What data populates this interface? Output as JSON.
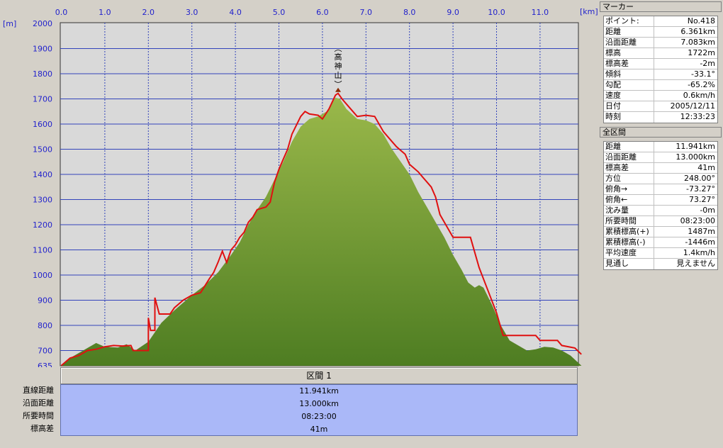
{
  "chart_data": {
    "type": "area",
    "x_unit": "[km]",
    "y_unit": "[m]",
    "x_ticks": [
      "0.0",
      "1.0",
      "2.0",
      "3.0",
      "4.0",
      "5.0",
      "6.0",
      "7.0",
      "8.0",
      "9.0",
      "10.0",
      "11.0"
    ],
    "y_ticks": [
      "2000",
      "1900",
      "1800",
      "1700",
      "1600",
      "1500",
      "1400",
      "1300",
      "1200",
      "1100",
      "1000",
      "900",
      "800",
      "700",
      "635"
    ],
    "xlim": [
      0,
      12
    ],
    "ylim": [
      635,
      2000
    ],
    "grid": true,
    "annotation": {
      "label": "高神山",
      "x": 6.36,
      "y": 1722
    },
    "series": [
      {
        "style": "green filled area",
        "color": "#6f9a3a",
        "points": [
          [
            0,
            640
          ],
          [
            0.2,
            670
          ],
          [
            0.5,
            700
          ],
          [
            0.8,
            730
          ],
          [
            1.0,
            715
          ],
          [
            1.3,
            712
          ],
          [
            1.5,
            725
          ],
          [
            1.7,
            700
          ],
          [
            2.0,
            735
          ],
          [
            2.3,
            810
          ],
          [
            2.6,
            860
          ],
          [
            3.0,
            920
          ],
          [
            3.3,
            960
          ],
          [
            3.6,
            1010
          ],
          [
            3.9,
            1080
          ],
          [
            4.1,
            1130
          ],
          [
            4.3,
            1200
          ],
          [
            4.5,
            1260
          ],
          [
            4.7,
            1310
          ],
          [
            4.9,
            1380
          ],
          [
            5.1,
            1450
          ],
          [
            5.3,
            1530
          ],
          [
            5.5,
            1590
          ],
          [
            5.7,
            1620
          ],
          [
            5.9,
            1630
          ],
          [
            6.1,
            1650
          ],
          [
            6.3,
            1705
          ],
          [
            6.4,
            1700
          ],
          [
            6.55,
            1660
          ],
          [
            6.8,
            1620
          ],
          [
            7.0,
            1615
          ],
          [
            7.2,
            1600
          ],
          [
            7.4,
            1560
          ],
          [
            7.6,
            1500
          ],
          [
            7.8,
            1450
          ],
          [
            8.0,
            1400
          ],
          [
            8.2,
            1330
          ],
          [
            8.4,
            1270
          ],
          [
            8.6,
            1210
          ],
          [
            8.8,
            1150
          ],
          [
            9.0,
            1080
          ],
          [
            9.2,
            1020
          ],
          [
            9.35,
            970
          ],
          [
            9.5,
            950
          ],
          [
            9.6,
            960
          ],
          [
            9.7,
            950
          ],
          [
            9.9,
            880
          ],
          [
            10.1,
            800
          ],
          [
            10.3,
            740
          ],
          [
            10.5,
            720
          ],
          [
            10.7,
            700
          ],
          [
            10.9,
            705
          ],
          [
            11.1,
            715
          ],
          [
            11.3,
            712
          ],
          [
            11.5,
            700
          ],
          [
            11.7,
            680
          ],
          [
            11.95,
            640
          ]
        ]
      },
      {
        "style": "red line",
        "color": "#e01010",
        "points": [
          [
            0,
            640
          ],
          [
            0.2,
            670
          ],
          [
            0.4,
            680
          ],
          [
            0.6,
            700
          ],
          [
            0.8,
            705
          ],
          [
            1.0,
            715
          ],
          [
            1.2,
            720
          ],
          [
            1.4,
            718
          ],
          [
            1.6,
            720
          ],
          [
            1.65,
            700
          ],
          [
            2.0,
            700
          ],
          [
            2.0,
            830
          ],
          [
            2.05,
            780
          ],
          [
            2.15,
            780
          ],
          [
            2.15,
            910
          ],
          [
            2.25,
            845
          ],
          [
            2.5,
            845
          ],
          [
            2.6,
            870
          ],
          [
            2.8,
            900
          ],
          [
            3.0,
            920
          ],
          [
            3.2,
            930
          ],
          [
            3.4,
            985
          ],
          [
            3.5,
            1010
          ],
          [
            3.6,
            1050
          ],
          [
            3.7,
            1095
          ],
          [
            3.8,
            1050
          ],
          [
            3.9,
            1100
          ],
          [
            4.0,
            1120
          ],
          [
            4.1,
            1150
          ],
          [
            4.2,
            1170
          ],
          [
            4.3,
            1210
          ],
          [
            4.4,
            1230
          ],
          [
            4.5,
            1260
          ],
          [
            4.7,
            1270
          ],
          [
            4.8,
            1290
          ],
          [
            4.9,
            1370
          ],
          [
            5.0,
            1420
          ],
          [
            5.1,
            1460
          ],
          [
            5.2,
            1500
          ],
          [
            5.3,
            1560
          ],
          [
            5.5,
            1630
          ],
          [
            5.6,
            1650
          ],
          [
            5.7,
            1640
          ],
          [
            5.9,
            1635
          ],
          [
            6.0,
            1620
          ],
          [
            6.15,
            1660
          ],
          [
            6.3,
            1715
          ],
          [
            6.36,
            1722
          ],
          [
            6.45,
            1700
          ],
          [
            6.6,
            1670
          ],
          [
            6.8,
            1630
          ],
          [
            7.0,
            1635
          ],
          [
            7.2,
            1630
          ],
          [
            7.4,
            1570
          ],
          [
            7.6,
            1530
          ],
          [
            7.7,
            1510
          ],
          [
            7.9,
            1480
          ],
          [
            8.0,
            1440
          ],
          [
            8.2,
            1410
          ],
          [
            8.3,
            1390
          ],
          [
            8.5,
            1350
          ],
          [
            8.6,
            1310
          ],
          [
            8.7,
            1240
          ],
          [
            8.8,
            1210
          ],
          [
            9.0,
            1150
          ],
          [
            9.4,
            1150
          ],
          [
            9.6,
            1030
          ],
          [
            9.8,
            940
          ],
          [
            10.0,
            850
          ],
          [
            10.15,
            760
          ],
          [
            10.9,
            760
          ],
          [
            11.0,
            740
          ],
          [
            11.4,
            740
          ],
          [
            11.5,
            720
          ],
          [
            11.8,
            710
          ],
          [
            11.95,
            685
          ]
        ]
      }
    ]
  },
  "summary": {
    "section_label": "区間 1",
    "labels": [
      "直線距離",
      "沿面距離",
      "所要時間",
      "標高差"
    ],
    "values": [
      "11.941km",
      "13.000km",
      "08:23:00",
      "41m"
    ]
  },
  "marker_panel": {
    "title": "マーカー",
    "rows": [
      {
        "k": "ポイント:",
        "v": "No.418"
      },
      {
        "k": "距離",
        "v": "6.361km"
      },
      {
        "k": "沿面距離",
        "v": "7.083km"
      },
      {
        "k": "標高",
        "v": "1722m"
      },
      {
        "k": "標高差",
        "v": "-2m"
      },
      {
        "k": "傾斜",
        "v": "-33.1°"
      },
      {
        "k": "勾配",
        "v": "-65.2%"
      },
      {
        "k": "速度",
        "v": "0.6km/h"
      },
      {
        "k": "日付",
        "v": "2005/12/11"
      },
      {
        "k": "時刻",
        "v": "12:33:23"
      }
    ]
  },
  "section_panel": {
    "title": "全区間",
    "rows": [
      {
        "k": "距離",
        "v": "11.941km"
      },
      {
        "k": "沿面距離",
        "v": "13.000km"
      },
      {
        "k": "標高差",
        "v": "41m"
      },
      {
        "k": "方位",
        "v": "248.00°"
      },
      {
        "k": "俯角→",
        "v": "-73.27°"
      },
      {
        "k": "俯角←",
        "v": "73.27°"
      },
      {
        "k": "沈み量",
        "v": "-0m"
      },
      {
        "k": "所要時間",
        "v": "08:23:00"
      },
      {
        "k": "累積標高(+)",
        "v": "1487m"
      },
      {
        "k": "累積標高(-)",
        "v": "-1446m"
      },
      {
        "k": "平均速度",
        "v": "1.4km/h"
      },
      {
        "k": "見通し",
        "v": "見えません"
      }
    ]
  }
}
